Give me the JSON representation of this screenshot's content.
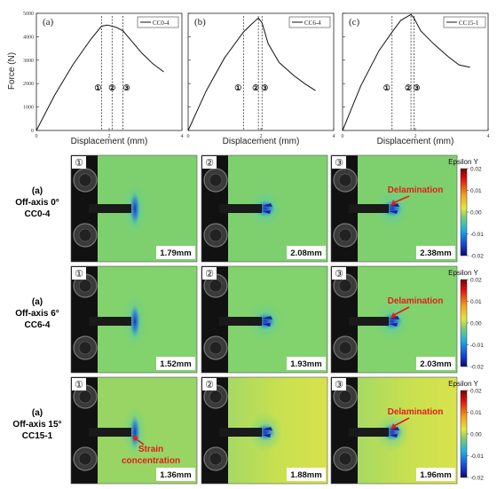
{
  "charts": [
    {
      "panel": "(a)",
      "legend": "CC0-4",
      "markers": [
        "①",
        "②",
        "③"
      ],
      "marker_x": [
        1.79,
        2.08,
        2.38
      ]
    },
    {
      "panel": "(b)",
      "legend": "CC6-4",
      "markers": [
        "①",
        "②",
        "③"
      ],
      "marker_x": [
        1.52,
        1.93,
        2.03
      ]
    },
    {
      "panel": "(c)",
      "legend": "CC15-1",
      "markers": [
        "①",
        "②",
        "③"
      ],
      "marker_x": [
        1.36,
        1.88,
        1.96
      ]
    }
  ],
  "axes": {
    "ylabel": "Force (N)",
    "xlabel": "Displacement (mm)",
    "yticks": [
      "0",
      "1000",
      "2000",
      "3000",
      "4000",
      "5000"
    ],
    "xticks": [
      "0",
      "2",
      "4"
    ]
  },
  "chart_data": [
    {
      "type": "line",
      "title": "(a)",
      "xlabel": "Displacement (mm)",
      "ylabel": "Force (N)",
      "xlim": [
        0,
        4
      ],
      "ylim": [
        0,
        5000
      ],
      "series": [
        {
          "name": "CC0-4",
          "x": [
            0,
            0.5,
            1.0,
            1.5,
            1.79,
            1.95,
            2.08,
            2.2,
            2.38,
            2.6,
            2.9,
            3.2,
            3.5
          ],
          "y": [
            0,
            1500,
            2800,
            3900,
            4450,
            4500,
            4450,
            4400,
            4250,
            3850,
            3300,
            2850,
            2500
          ]
        }
      ]
    },
    {
      "type": "line",
      "title": "(b)",
      "xlabel": "Displacement (mm)",
      "ylabel": "Force (N)",
      "xlim": [
        0,
        4
      ],
      "ylim": [
        0,
        5000
      ],
      "series": [
        {
          "name": "CC6-4",
          "x": [
            0,
            0.5,
            1.0,
            1.52,
            1.75,
            1.93,
            2.03,
            2.2,
            2.5,
            2.9,
            3.2,
            3.5
          ],
          "y": [
            0,
            1700,
            3100,
            4200,
            4550,
            4800,
            4600,
            3700,
            2900,
            2350,
            2000,
            1700
          ]
        }
      ]
    },
    {
      "type": "line",
      "title": "(c)",
      "xlabel": "Displacement (mm)",
      "ylabel": "Force (N)",
      "xlim": [
        0,
        4
      ],
      "ylim": [
        0,
        5000
      ],
      "series": [
        {
          "name": "CC15-1",
          "x": [
            0,
            0.5,
            1.0,
            1.36,
            1.6,
            1.88,
            1.96,
            2.15,
            2.5,
            2.9,
            3.2,
            3.5
          ],
          "y": [
            0,
            1900,
            3400,
            4200,
            4700,
            4950,
            4800,
            4250,
            3700,
            3150,
            2800,
            2700
          ]
        }
      ]
    }
  ],
  "rows": [
    {
      "label_line1": "(a)",
      "label_line2": "Off-axis 0°",
      "label_line3": "CC0-4",
      "cells": [
        {
          "num": "①",
          "value": "1.79mm"
        },
        {
          "num": "②",
          "value": "2.08mm"
        },
        {
          "num": "③",
          "value": "2.38mm",
          "note": "Delamination"
        }
      ]
    },
    {
      "label_line1": "(a)",
      "label_line2": "Off-axis 6°",
      "label_line3": "CC6-4",
      "cells": [
        {
          "num": "①",
          "value": "1.52mm"
        },
        {
          "num": "②",
          "value": "1.93mm"
        },
        {
          "num": "③",
          "value": "2.03mm",
          "note": "Delamination"
        }
      ]
    },
    {
      "label_line1": "(a)",
      "label_line2": "Off-axis 15°",
      "label_line3": "CC15-1",
      "cells": [
        {
          "num": "①",
          "value": "1.36mm",
          "note_line1": "Strain",
          "note_line2": "concentration"
        },
        {
          "num": "②",
          "value": "1.88mm"
        },
        {
          "num": "③",
          "value": "1.96mm",
          "note": "Delamination"
        }
      ]
    }
  ],
  "colorbar": {
    "title": "Epsilon Y",
    "ticks": [
      "0.02",
      "0.01",
      "0.00",
      "-0.01",
      "-0.02"
    ]
  },
  "colors": {
    "field_green": "#7ed06f",
    "field_yellow": "#d4e24e",
    "strain_blue": "#1a3cc8",
    "annotation_red": "#e0201a"
  }
}
